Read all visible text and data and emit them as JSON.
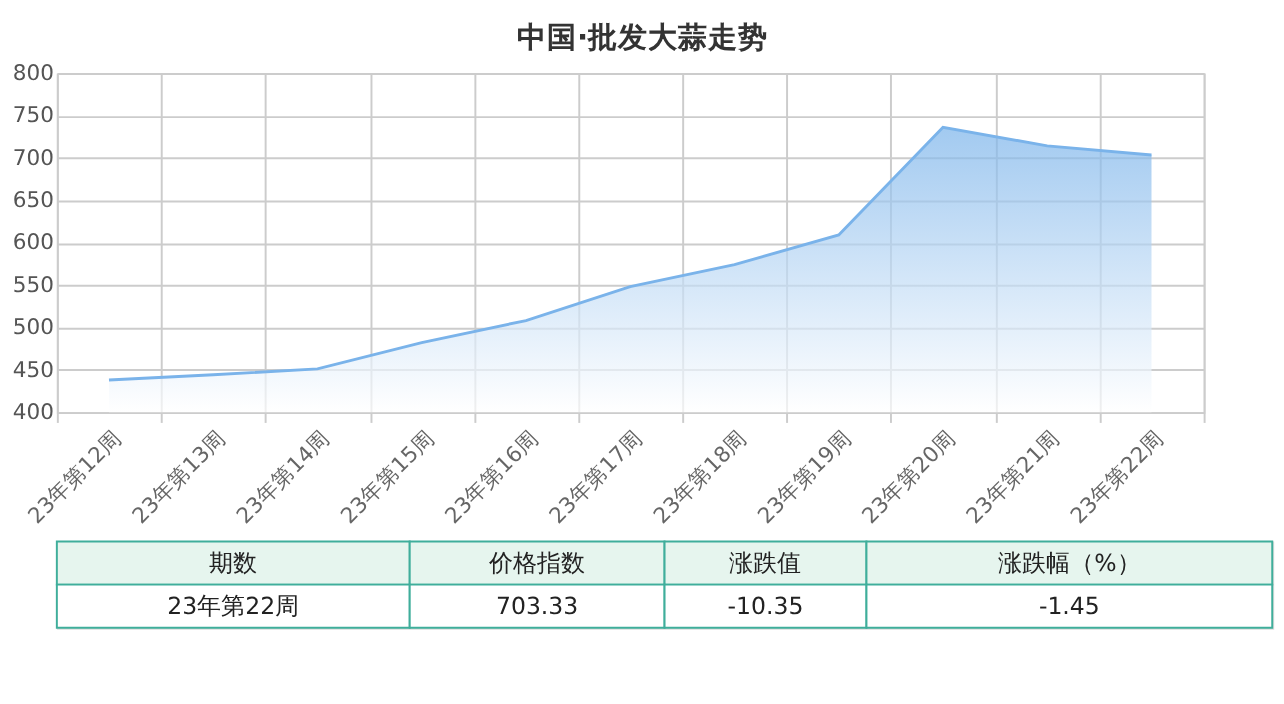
{
  "chart_data": {
    "type": "area",
    "title": "中国·批发大蒜走势",
    "categories": [
      "23年第12周",
      "23年第13周",
      "23年第14周",
      "23年第15周",
      "23年第16周",
      "23年第17周",
      "23年第18周",
      "23年第19周",
      "23年第20周",
      "23年第21周",
      "23年第22周"
    ],
    "series": [
      {
        "color": "#7ab3ea",
        "values": [
          438,
          444,
          451,
          482,
          508,
          548,
          574,
          609,
          736,
          714,
          703.33
        ]
      }
    ],
    "ylim": [
      400,
      800
    ],
    "yticks": [
      400,
      450,
      500,
      550,
      600,
      650,
      700,
      750,
      800
    ],
    "grid": true,
    "annotations": [
      "期数",
      "价格指数",
      "涨跌值",
      "涨跌幅（%）",
      "23年第22周",
      "703.33",
      "-10.35",
      "-1.45"
    ]
  }
}
